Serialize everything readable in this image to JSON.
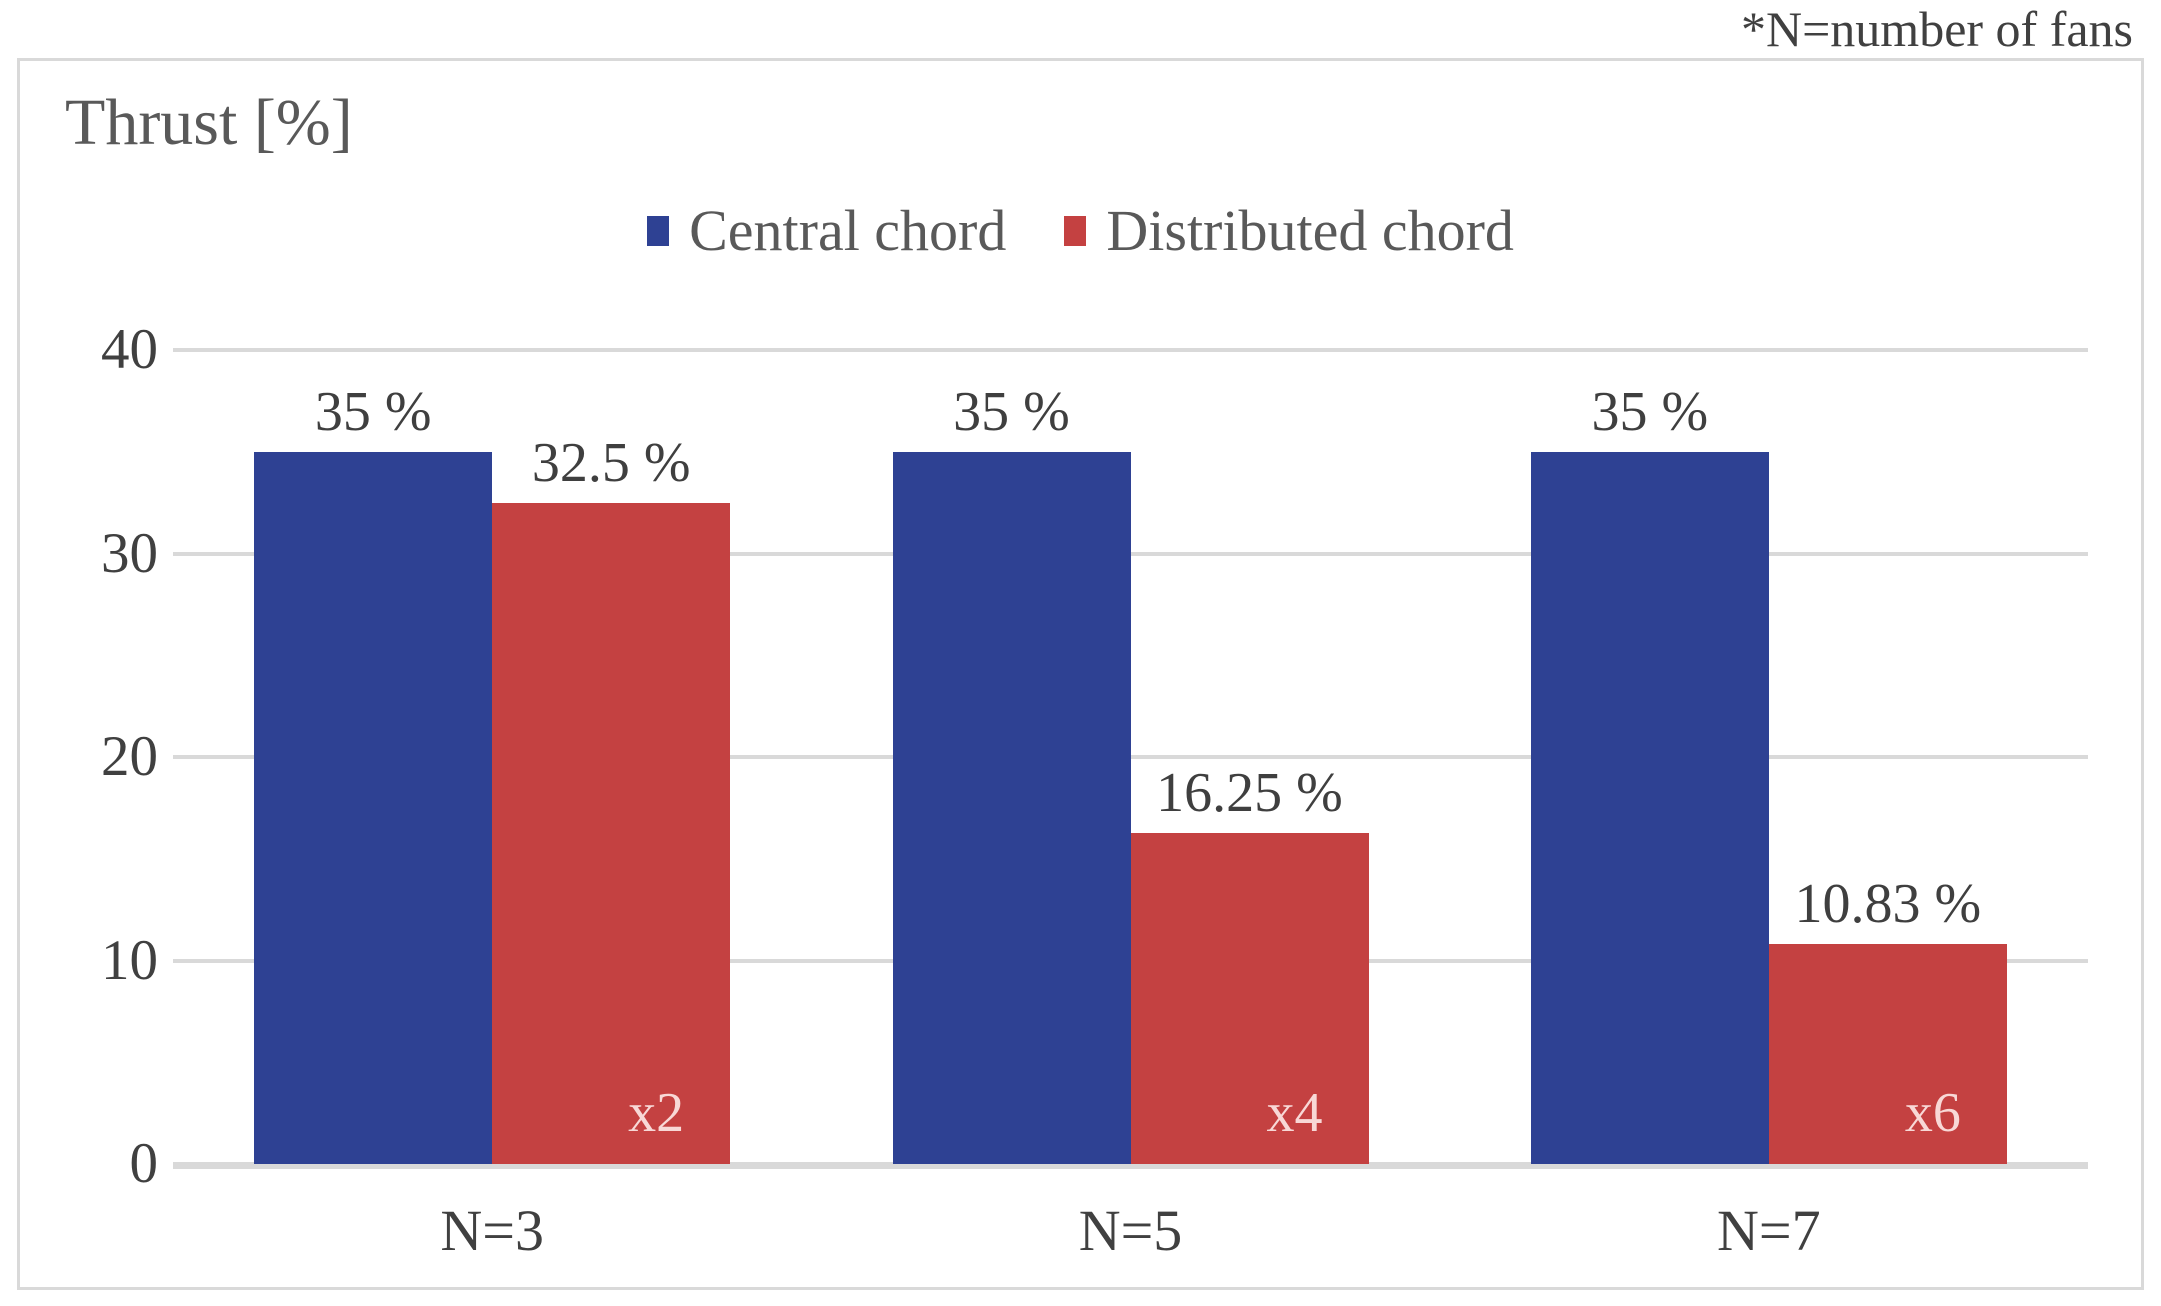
{
  "note": "*N=number of fans",
  "chart_data": {
    "type": "bar",
    "title": "Thrust [%]",
    "annotation": "*N=number of fans",
    "categories": [
      "N=3",
      "N=5",
      "N=7"
    ],
    "series": [
      {
        "name": "Central chord",
        "color": "#2E4193",
        "values": [
          35,
          35,
          35
        ],
        "data_labels": [
          "35 %",
          "35 %",
          "35 %"
        ]
      },
      {
        "name": "Distributed chord",
        "color": "#C44141",
        "values": [
          32.5,
          16.25,
          10.83
        ],
        "data_labels": [
          "32.5 %",
          "16.25 %",
          "10.83 %"
        ],
        "inner_labels": [
          "x2",
          "x4",
          "x6"
        ],
        "inner_label_color": "#F8D8D6"
      }
    ],
    "ylabel": "Thrust [%]",
    "ylim": [
      0,
      40
    ],
    "yticks": [
      0,
      10,
      20,
      30,
      40
    ],
    "grid": true,
    "gridline_color": "#D9D9D9",
    "legend_position": "top-center",
    "legend_entries": [
      "Central chord",
      "Distributed chord"
    ]
  }
}
